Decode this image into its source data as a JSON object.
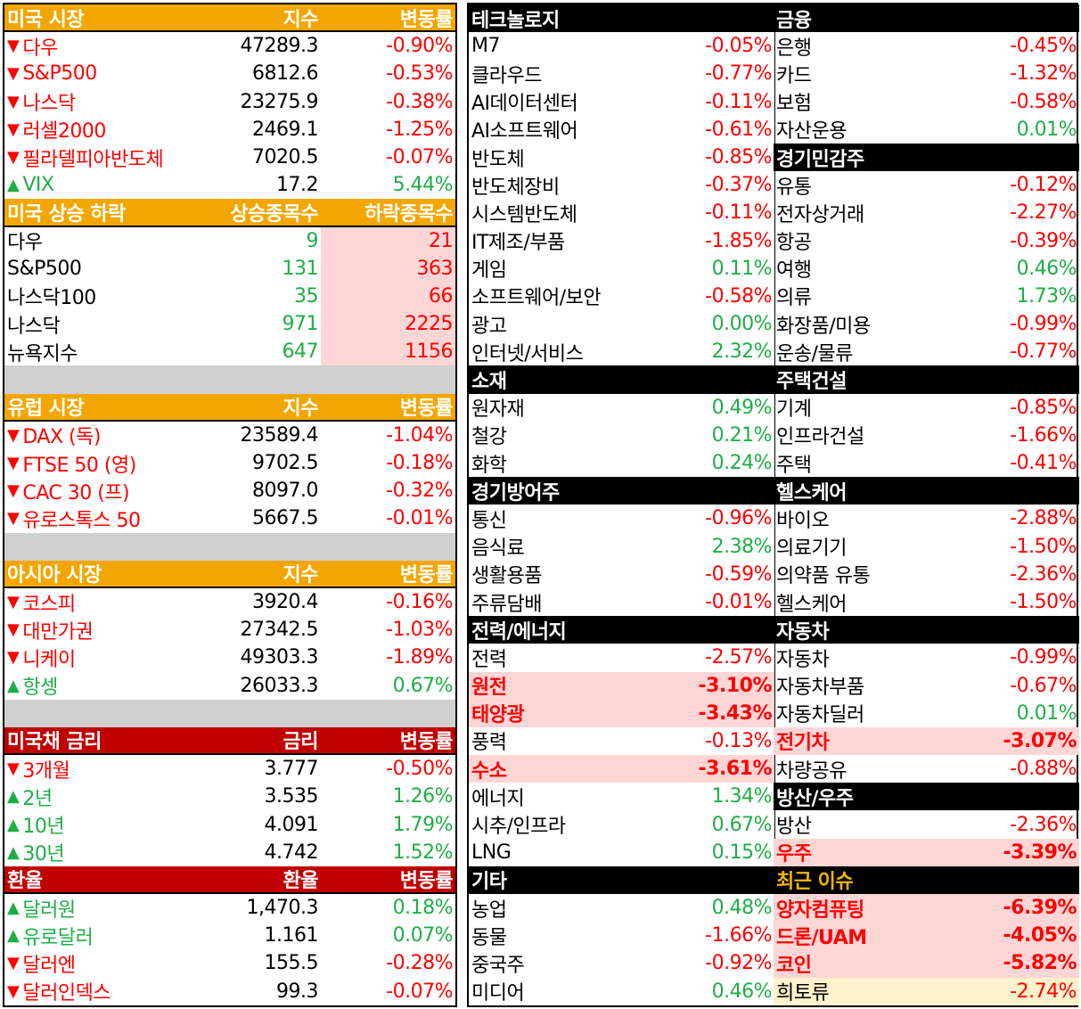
{
  "left": {
    "us_market": {
      "header": [
        "미국 시장",
        "지수",
        "변동률"
      ],
      "rows": [
        {
          "arrow": "▼",
          "name": "다우",
          "value": "47289.3",
          "change": "-0.90%",
          "dir": "down"
        },
        {
          "arrow": "▼",
          "name": "S&P500",
          "value": "6812.6",
          "change": "-0.53%",
          "dir": "down"
        },
        {
          "arrow": "▼",
          "name": "나스닥",
          "value": "23275.9",
          "change": "-0.38%",
          "dir": "down"
        },
        {
          "arrow": "▼",
          "name": "러셀2000",
          "value": "2469.1",
          "change": "-1.25%",
          "dir": "down"
        },
        {
          "arrow": "▼",
          "name": "필라델피아반도체",
          "value": "7020.5",
          "change": "-0.07%",
          "dir": "down"
        },
        {
          "arrow": "▲",
          "name": "VIX",
          "value": "17.2",
          "change": "5.44%",
          "dir": "up"
        }
      ]
    },
    "us_breadth": {
      "header": [
        "미국 상승 하락",
        "상승종목수",
        "하락종목수"
      ],
      "rows": [
        {
          "name": "다우",
          "up": "9",
          "down": "21"
        },
        {
          "name": "S&P500",
          "up": "131",
          "down": "363"
        },
        {
          "name": "나스닥100",
          "up": "35",
          "down": "66"
        },
        {
          "name": "나스닥",
          "up": "971",
          "down": "2225"
        },
        {
          "name": "뉴욕지수",
          "up": "647",
          "down": "1156"
        }
      ]
    },
    "europe": {
      "header": [
        "유럽 시장",
        "지수",
        "변동률"
      ],
      "rows": [
        {
          "arrow": "▼",
          "name": "DAX (독)",
          "value": "23589.4",
          "change": "-1.04%",
          "dir": "down"
        },
        {
          "arrow": "▼",
          "name": "FTSE 50 (영)",
          "value": "9702.5",
          "change": "-0.18%",
          "dir": "down"
        },
        {
          "arrow": "▼",
          "name": "CAC 30 (프)",
          "value": "8097.0",
          "change": "-0.32%",
          "dir": "down"
        },
        {
          "arrow": "▼",
          "name": "유로스톡스 50",
          "value": "5667.5",
          "change": "-0.01%",
          "dir": "down"
        }
      ]
    },
    "asia": {
      "header": [
        "아시아 시장",
        "지수",
        "변동률"
      ],
      "rows": [
        {
          "arrow": "▼",
          "name": "코스피",
          "value": "3920.4",
          "change": "-0.16%",
          "dir": "down"
        },
        {
          "arrow": "▼",
          "name": "대만가권",
          "value": "27342.5",
          "change": "-1.03%",
          "dir": "down"
        },
        {
          "arrow": "▼",
          "name": "니케이",
          "value": "49303.3",
          "change": "-1.89%",
          "dir": "down"
        },
        {
          "arrow": "▲",
          "name": "항셍",
          "value": "26033.3",
          "change": "0.67%",
          "dir": "up"
        }
      ]
    },
    "treasury": {
      "header": [
        "미국채 금리",
        "금리",
        "변동률"
      ],
      "rows": [
        {
          "arrow": "▼",
          "name": "3개월",
          "value": "3.777",
          "change": "-0.50%",
          "dir": "down"
        },
        {
          "arrow": "▲",
          "name": "2년",
          "value": "3.535",
          "change": "1.26%",
          "dir": "up"
        },
        {
          "arrow": "▲",
          "name": "10년",
          "value": "4.091",
          "change": "1.79%",
          "dir": "up"
        },
        {
          "arrow": "▲",
          "name": "30년",
          "value": "4.742",
          "change": "1.52%",
          "dir": "up"
        }
      ]
    },
    "fx": {
      "header": [
        "환율",
        "환율",
        "변동률"
      ],
      "rows": [
        {
          "arrow": "▲",
          "name": "달러원",
          "value": "1,470.3",
          "change": "0.18%",
          "dir": "up"
        },
        {
          "arrow": "▲",
          "name": "유로달러",
          "value": "1.161",
          "change": "0.07%",
          "dir": "up"
        },
        {
          "arrow": "▼",
          "name": "달러엔",
          "value": "155.5",
          "change": "-0.28%",
          "dir": "down"
        },
        {
          "arrow": "▼",
          "name": "달러인덱스",
          "value": "99.3",
          "change": "-0.07%",
          "dir": "down"
        }
      ]
    }
  },
  "right": {
    "col1": [
      {
        "title": "테크놀로지",
        "rows": [
          {
            "name": "M7",
            "change": "-0.05%",
            "dir": "down"
          },
          {
            "name": "클라우드",
            "change": "-0.77%",
            "dir": "down"
          },
          {
            "name": "AI데이터센터",
            "change": "-0.11%",
            "dir": "down"
          },
          {
            "name": "AI소프트웨어",
            "change": "-0.61%",
            "dir": "down"
          },
          {
            "name": "반도체",
            "change": "-0.85%",
            "dir": "down"
          },
          {
            "name": "반도체장비",
            "change": "-0.37%",
            "dir": "down"
          },
          {
            "name": "시스템반도체",
            "change": "-0.11%",
            "dir": "down"
          },
          {
            "name": "IT제조/부품",
            "change": "-1.85%",
            "dir": "down"
          },
          {
            "name": "게임",
            "change": "0.11%",
            "dir": "up"
          },
          {
            "name": "소프트웨어/보안",
            "change": "-0.58%",
            "dir": "down"
          },
          {
            "name": "광고",
            "change": "0.00%",
            "dir": "up"
          },
          {
            "name": "인터넷/서비스",
            "change": "2.32%",
            "dir": "up"
          }
        ]
      },
      {
        "title": "소재",
        "rows": [
          {
            "name": "원자재",
            "change": "0.49%",
            "dir": "up"
          },
          {
            "name": "철강",
            "change": "0.21%",
            "dir": "up"
          },
          {
            "name": "화학",
            "change": "0.24%",
            "dir": "up"
          }
        ]
      },
      {
        "title": "경기방어주",
        "rows": [
          {
            "name": "통신",
            "change": "-0.96%",
            "dir": "down"
          },
          {
            "name": "음식료",
            "change": "2.38%",
            "dir": "up"
          },
          {
            "name": "생활용품",
            "change": "-0.59%",
            "dir": "down"
          },
          {
            "name": "주류담배",
            "change": "-0.01%",
            "dir": "down"
          }
        ]
      },
      {
        "title": "전력/에너지",
        "rows": [
          {
            "name": "전력",
            "change": "-2.57%",
            "dir": "down"
          },
          {
            "name": "원전",
            "change": "-3.10%",
            "dir": "down",
            "hl": "pink"
          },
          {
            "name": "태양광",
            "change": "-3.43%",
            "dir": "down",
            "hl": "pink"
          },
          {
            "name": "풍력",
            "change": "-0.13%",
            "dir": "down"
          },
          {
            "name": "수소",
            "change": "-3.61%",
            "dir": "down",
            "hl": "pink"
          },
          {
            "name": "에너지",
            "change": "1.34%",
            "dir": "up"
          },
          {
            "name": "시추/인프라",
            "change": "0.67%",
            "dir": "up"
          },
          {
            "name": "LNG",
            "change": "0.15%",
            "dir": "up"
          }
        ]
      },
      {
        "title": "기타",
        "rows": [
          {
            "name": "농업",
            "change": "0.48%",
            "dir": "up"
          },
          {
            "name": "동물",
            "change": "-1.66%",
            "dir": "down"
          },
          {
            "name": "중국주",
            "change": "-0.92%",
            "dir": "down"
          },
          {
            "name": "미디어",
            "change": "0.46%",
            "dir": "up"
          }
        ]
      }
    ],
    "col2": [
      {
        "title": "금융",
        "rows": [
          {
            "name": "은행",
            "change": "-0.45%",
            "dir": "down"
          },
          {
            "name": "카드",
            "change": "-1.32%",
            "dir": "down"
          },
          {
            "name": "보험",
            "change": "-0.58%",
            "dir": "down"
          },
          {
            "name": "자산운용",
            "change": "0.01%",
            "dir": "up"
          }
        ]
      },
      {
        "title": "경기민감주",
        "rows": [
          {
            "name": "유통",
            "change": "-0.12%",
            "dir": "down"
          },
          {
            "name": "전자상거래",
            "change": "-2.27%",
            "dir": "down"
          },
          {
            "name": "항공",
            "change": "-0.39%",
            "dir": "down"
          },
          {
            "name": "여행",
            "change": "0.46%",
            "dir": "up"
          },
          {
            "name": "의류",
            "change": "1.73%",
            "dir": "up"
          },
          {
            "name": "화장품/미용",
            "change": "-0.99%",
            "dir": "down"
          },
          {
            "name": "운송/물류",
            "change": "-0.77%",
            "dir": "down"
          }
        ]
      },
      {
        "title": "주택건설",
        "rows": [
          {
            "name": "기계",
            "change": "-0.85%",
            "dir": "down"
          },
          {
            "name": "인프라건설",
            "change": "-1.66%",
            "dir": "down"
          },
          {
            "name": "주택",
            "change": "-0.41%",
            "dir": "down"
          }
        ]
      },
      {
        "title": "헬스케어",
        "rows": [
          {
            "name": "바이오",
            "change": "-2.88%",
            "dir": "down"
          },
          {
            "name": "의료기기",
            "change": "-1.50%",
            "dir": "down"
          },
          {
            "name": "의약품 유통",
            "change": "-2.36%",
            "dir": "down"
          },
          {
            "name": "헬스케어",
            "change": "-1.50%",
            "dir": "down"
          }
        ]
      },
      {
        "title": "자동차",
        "rows": [
          {
            "name": "자동차",
            "change": "-0.99%",
            "dir": "down"
          },
          {
            "name": "자동차부품",
            "change": "-0.67%",
            "dir": "down"
          },
          {
            "name": "자동차딜러",
            "change": "0.01%",
            "dir": "up"
          },
          {
            "name": "전기차",
            "change": "-3.07%",
            "dir": "down",
            "hl": "pink"
          },
          {
            "name": "차량공유",
            "change": "-0.88%",
            "dir": "down"
          }
        ]
      },
      {
        "title": "방산/우주",
        "rows": [
          {
            "name": "방산",
            "change": "-2.36%",
            "dir": "down"
          },
          {
            "name": "우주",
            "change": "-3.39%",
            "dir": "down",
            "hl": "pink"
          }
        ]
      },
      {
        "title": "최근 이슈",
        "gold": true,
        "rows": [
          {
            "name": "양자컴퓨팅",
            "change": "-6.39%",
            "dir": "down",
            "hl": "pink"
          },
          {
            "name": "드론/UAM",
            "change": "-4.05%",
            "dir": "down",
            "hl": "pink"
          },
          {
            "name": "코인",
            "change": "-5.82%",
            "dir": "down",
            "hl": "pink"
          },
          {
            "name": "희토류",
            "change": "-2.74%",
            "dir": "down",
            "hl": "yellow"
          }
        ]
      }
    ]
  },
  "colors": {
    "up": "#1fae46",
    "down": "#ff0000",
    "orange": "#f4a600",
    "darkred": "#c00000",
    "pink": "#ffd6d6",
    "yellow": "#fff2cc"
  }
}
